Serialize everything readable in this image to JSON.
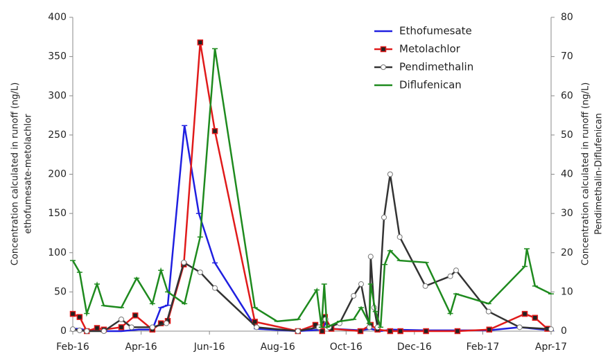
{
  "chart_data": {
    "type": "line",
    "x_axis_type": "months",
    "xlim": [
      0,
      14
    ],
    "xticks": [
      {
        "value": 0,
        "label": "Feb-16"
      },
      {
        "value": 2,
        "label": "Apr-16"
      },
      {
        "value": 4,
        "label": "Jun-16"
      },
      {
        "value": 6,
        "label": "Aug-16"
      },
      {
        "value": 8,
        "label": "Oct-16"
      },
      {
        "value": 10,
        "label": "Dec-16"
      },
      {
        "value": 12,
        "label": "Feb-17"
      },
      {
        "value": 14,
        "label": "Apr-17"
      }
    ],
    "ylim": [
      0,
      400
    ],
    "yticks": [
      0,
      50,
      100,
      150,
      200,
      250,
      300,
      350,
      400
    ],
    "y2lim": [
      0,
      80
    ],
    "y2ticks": [
      0,
      10,
      20,
      30,
      40,
      50,
      60,
      70,
      80
    ],
    "y_label": [
      "Concentration calculated in runoff (ng/L)",
      "ethofumesate-metolachlor"
    ],
    "y2_label": [
      "Concentration calculated in runoff (ng/L)",
      "Pendimethalin-Diflufenican"
    ],
    "legend": "upper center",
    "series": [
      {
        "name": "Ethofumesate",
        "color": "#1f1fe0",
        "marker": "dash",
        "axis": "y",
        "x": [
          0,
          0.2,
          0.41,
          0.91,
          1.42,
          1.93,
          2.33,
          2.58,
          2.78,
          3.27,
          3.69,
          4.16,
          5.38,
          6.59,
          7.3,
          7.4,
          7.61,
          8.42,
          8.72,
          8.99,
          9.33,
          10.34,
          11.26,
          12.17,
          13.08,
          14
        ],
        "values": [
          3,
          3,
          1,
          0,
          0,
          2,
          2,
          30,
          33,
          262,
          150,
          87,
          3,
          0,
          2,
          10,
          3,
          1,
          3,
          0,
          2,
          1,
          1,
          1,
          5,
          1
        ]
      },
      {
        "name": "Metolachlor",
        "color": "#e01a1a",
        "marker": "square",
        "axis": "y",
        "x": [
          0,
          0.2,
          0.41,
          0.71,
          0.91,
          1.42,
          1.83,
          2.33,
          2.58,
          2.78,
          3.25,
          3.73,
          4.16,
          5.33,
          6.59,
          7.1,
          7.3,
          7.38,
          7.57,
          8.42,
          8.72,
          8.92,
          9.29,
          9.59,
          10.34,
          11.26,
          12.19,
          13.23,
          13.53,
          13.89
        ],
        "values": [
          22,
          18,
          0,
          4,
          2,
          5,
          20,
          2,
          10,
          13,
          85,
          368,
          255,
          12,
          0,
          8,
          0,
          18,
          3,
          0,
          8,
          2,
          0,
          0,
          0,
          0,
          2,
          22,
          17,
          3
        ]
      },
      {
        "name": "Pendimethalin",
        "color": "#333333",
        "marker": "circle",
        "axis": "y2",
        "x": [
          0,
          0.2,
          0.41,
          0.91,
          1.42,
          1.72,
          2.33,
          2.74,
          3.25,
          3.73,
          4.16,
          5.38,
          6.59,
          7.2,
          7.4,
          7.5,
          7.81,
          8.22,
          8.44,
          8.68,
          8.72,
          8.82,
          8.92,
          9.11,
          9.29,
          9.57,
          10.32,
          11.05,
          11.22,
          12.17,
          13.08,
          14
        ],
        "values": [
          0.5,
          0.2,
          0,
          0,
          3,
          1,
          1,
          2,
          17.5,
          15,
          11,
          1,
          0,
          1,
          3,
          1,
          2,
          9,
          12,
          1,
          19,
          6,
          1,
          29,
          40,
          24,
          11.5,
          14,
          15.5,
          5,
          1,
          0.5
        ]
      },
      {
        "name": "Diflufenican",
        "color": "#1e8a1e",
        "marker": "dash",
        "axis": "y2",
        "x": [
          0,
          0.2,
          0.41,
          0.71,
          0.91,
          1.42,
          1.87,
          2.33,
          2.58,
          2.78,
          3.27,
          3.73,
          4.16,
          5.33,
          5.98,
          6.59,
          7.14,
          7.28,
          7.36,
          7.44,
          7.81,
          8.22,
          8.44,
          8.68,
          8.72,
          8.86,
          9.01,
          9.13,
          9.29,
          9.57,
          10.34,
          11.05,
          11.22,
          12.17,
          13.23,
          13.29,
          13.53,
          14
        ],
        "values": [
          18,
          15,
          4.5,
          12,
          6.5,
          6,
          13.5,
          7,
          15.5,
          10,
          7,
          24,
          72,
          6,
          2.5,
          3,
          10.5,
          1,
          12,
          1,
          2.5,
          3,
          6,
          2,
          12,
          5,
          1,
          17,
          20.5,
          18,
          17.5,
          4.5,
          9.5,
          7,
          16.5,
          21,
          11.5,
          9.5
        ]
      }
    ]
  }
}
